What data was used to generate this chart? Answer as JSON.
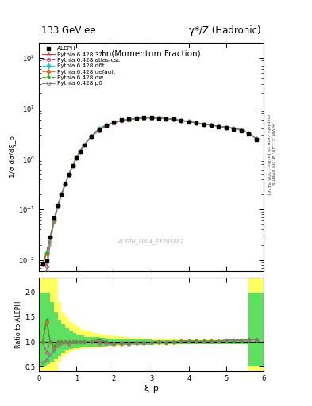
{
  "title_left": "133 GeV ee",
  "title_right": "γ*/Z (Hadronic)",
  "xlabel": "ξ_p",
  "ylabel_main": "1/σ dσ/dξ_p",
  "ylabel_ratio": "Ratio to ALEPH",
  "x_label_center": "Ln(Momentum Fraction)",
  "right_label1": "Rivet 3.1.10, ≥ 3M events",
  "right_label2": "mcplots.cern.ch [arXiv:1306.3436]",
  "watermark": "ALEPH_2004_S5765862",
  "xlim": [
    0,
    6
  ],
  "ylim_main": [
    0.006,
    200
  ],
  "ylim_ratio": [
    0.4,
    2.3
  ],
  "aleph_x": [
    0.1,
    0.2,
    0.3,
    0.4,
    0.5,
    0.6,
    0.7,
    0.8,
    0.9,
    1.0,
    1.1,
    1.2,
    1.4,
    1.6,
    1.8,
    2.0,
    2.2,
    2.4,
    2.6,
    2.8,
    3.0,
    3.2,
    3.4,
    3.6,
    3.8,
    4.0,
    4.2,
    4.4,
    4.6,
    4.8,
    5.0,
    5.2,
    5.4,
    5.6,
    5.8
  ],
  "aleph_y": [
    0.0082,
    0.0095,
    0.028,
    0.068,
    0.12,
    0.2,
    0.32,
    0.5,
    0.74,
    1.05,
    1.42,
    1.88,
    2.8,
    3.75,
    4.65,
    5.38,
    5.88,
    6.25,
    6.5,
    6.65,
    6.58,
    6.48,
    6.28,
    6.08,
    5.7,
    5.4,
    5.1,
    4.82,
    4.6,
    4.32,
    4.1,
    3.9,
    3.6,
    3.1,
    2.4
  ],
  "aleph_err_rel": 0.04,
  "mc_colors": [
    "#d04040",
    "#d04090",
    "#20c0c0",
    "#d07020",
    "#20b020",
    "#808080"
  ],
  "mc_markers": [
    "^",
    "o",
    "D",
    "D",
    "*",
    "o"
  ],
  "mc_lstyles": [
    "-",
    "--",
    "--",
    "--",
    "--",
    "-"
  ],
  "mc_labels": [
    "Pythia 6.428 370",
    "Pythia 6.428 atlas-csc",
    "Pythia 6.428 d6t",
    "Pythia 6.428 default",
    "Pythia 6.428 dw",
    "Pythia 6.428 p0"
  ],
  "mc_ratio_offsets": [
    [
      1.0,
      1.45,
      1.0,
      0.9,
      1.0,
      1.0,
      1.0,
      1.0,
      1.0,
      1.0,
      1.0,
      1.0,
      1.0,
      1.05,
      1.0,
      0.97,
      0.98,
      0.97,
      0.98,
      0.98,
      0.99,
      1.0,
      0.99,
      1.0,
      1.01,
      1.02,
      1.01,
      1.01,
      1.01,
      1.02,
      1.03,
      1.04,
      1.04,
      1.05,
      1.05
    ],
    [
      1.0,
      0.78,
      1.0,
      0.88,
      1.0,
      1.0,
      1.0,
      0.95,
      1.0,
      1.0,
      1.0,
      1.0,
      1.0,
      0.97,
      0.97,
      0.95,
      0.96,
      0.96,
      0.97,
      0.97,
      0.98,
      0.99,
      0.98,
      0.99,
      1.0,
      1.01,
      1.0,
      1.0,
      1.0,
      1.01,
      1.02,
      1.03,
      1.03,
      1.04,
      1.04
    ],
    [
      1.0,
      1.45,
      1.02,
      0.9,
      1.0,
      1.0,
      1.0,
      1.0,
      1.0,
      1.0,
      1.0,
      1.0,
      1.0,
      1.05,
      1.0,
      0.97,
      0.98,
      0.97,
      0.98,
      0.98,
      0.99,
      1.0,
      0.99,
      1.0,
      1.01,
      1.02,
      1.01,
      1.01,
      1.01,
      1.02,
      1.03,
      1.04,
      1.04,
      1.05,
      1.05
    ],
    [
      1.0,
      1.4,
      1.0,
      0.9,
      1.0,
      1.0,
      1.0,
      1.0,
      1.0,
      1.0,
      1.0,
      1.0,
      1.0,
      1.04,
      1.0,
      0.97,
      0.98,
      0.97,
      0.98,
      0.98,
      0.99,
      1.0,
      0.99,
      1.0,
      1.01,
      1.02,
      1.01,
      1.01,
      1.01,
      1.02,
      1.03,
      1.04,
      1.04,
      1.05,
      1.05
    ],
    [
      1.0,
      1.45,
      1.0,
      0.92,
      1.0,
      1.0,
      1.0,
      1.0,
      1.0,
      1.0,
      1.0,
      1.0,
      1.0,
      1.05,
      1.0,
      0.97,
      0.98,
      0.97,
      0.98,
      0.98,
      0.99,
      1.0,
      0.99,
      1.0,
      1.01,
      1.02,
      1.01,
      1.01,
      1.01,
      1.02,
      1.03,
      1.04,
      1.04,
      1.05,
      1.05
    ],
    [
      0.58,
      0.63,
      0.75,
      0.82,
      0.92,
      0.97,
      1.0,
      1.0,
      1.0,
      1.0,
      1.0,
      1.0,
      1.0,
      1.0,
      1.0,
      0.97,
      0.97,
      0.97,
      0.98,
      0.98,
      0.99,
      1.0,
      0.99,
      1.0,
      1.01,
      1.02,
      1.01,
      1.01,
      1.01,
      1.02,
      1.03,
      1.04,
      1.04,
      1.05,
      1.05
    ]
  ],
  "band_x_edges": [
    0.0,
    0.1,
    0.2,
    0.3,
    0.4,
    0.5,
    0.6,
    0.7,
    0.8,
    0.9,
    1.0,
    1.1,
    1.2,
    1.4,
    1.6,
    1.8,
    2.0,
    2.2,
    2.4,
    2.6,
    2.8,
    3.0,
    3.2,
    3.4,
    3.6,
    3.8,
    4.0,
    4.2,
    4.4,
    4.6,
    4.8,
    5.0,
    5.2,
    5.4,
    5.6,
    5.8,
    6.0
  ],
  "band_yellow_lo": [
    0.4,
    0.4,
    0.4,
    0.4,
    0.4,
    0.6,
    0.7,
    0.75,
    0.8,
    0.82,
    0.84,
    0.86,
    0.87,
    0.88,
    0.89,
    0.9,
    0.91,
    0.92,
    0.93,
    0.93,
    0.93,
    0.94,
    0.94,
    0.94,
    0.94,
    0.95,
    0.95,
    0.95,
    0.95,
    0.95,
    0.95,
    0.95,
    0.95,
    0.95,
    0.4,
    0.4
  ],
  "band_yellow_hi": [
    2.3,
    2.3,
    2.3,
    2.3,
    2.3,
    1.8,
    1.6,
    1.5,
    1.4,
    1.35,
    1.3,
    1.25,
    1.22,
    1.18,
    1.15,
    1.13,
    1.11,
    1.09,
    1.08,
    1.08,
    1.07,
    1.06,
    1.06,
    1.06,
    1.06,
    1.05,
    1.05,
    1.05,
    1.05,
    1.05,
    1.05,
    1.05,
    1.05,
    1.05,
    2.3,
    2.3
  ],
  "band_green_lo": [
    0.5,
    0.5,
    0.55,
    0.6,
    0.65,
    0.72,
    0.78,
    0.82,
    0.85,
    0.87,
    0.88,
    0.89,
    0.9,
    0.91,
    0.91,
    0.92,
    0.93,
    0.93,
    0.94,
    0.94,
    0.94,
    0.95,
    0.95,
    0.95,
    0.95,
    0.95,
    0.96,
    0.96,
    0.96,
    0.96,
    0.96,
    0.96,
    0.96,
    0.96,
    0.5,
    0.5
  ],
  "band_green_hi": [
    2.0,
    2.0,
    2.0,
    1.8,
    1.6,
    1.45,
    1.35,
    1.28,
    1.22,
    1.18,
    1.15,
    1.13,
    1.1,
    1.09,
    1.08,
    1.07,
    1.06,
    1.05,
    1.05,
    1.05,
    1.05,
    1.04,
    1.04,
    1.04,
    1.04,
    1.04,
    1.04,
    1.04,
    1.04,
    1.04,
    1.04,
    1.04,
    1.04,
    1.04,
    2.0,
    2.0
  ]
}
